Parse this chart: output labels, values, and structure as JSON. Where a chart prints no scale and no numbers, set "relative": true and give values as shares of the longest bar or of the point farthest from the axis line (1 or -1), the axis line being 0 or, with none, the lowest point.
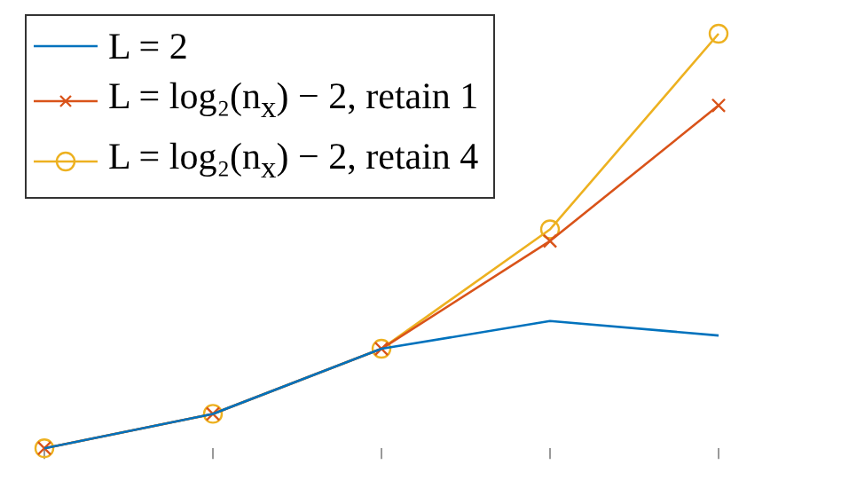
{
  "chart_data": {
    "type": "line",
    "relative": true,
    "categories": [
      null,
      null,
      null,
      null,
      null
    ],
    "grid": false,
    "legend": "top left",
    "line_style": "solid",
    "series": [
      {
        "name": "L = 2",
        "color": "#0072bd",
        "marker": "none",
        "values": [
          0,
          0.083,
          0.24,
          0.307,
          0.272
        ]
      },
      {
        "name": "L = log₂(n$_{x}$) − 2, retain 1",
        "color": "#d95319",
        "marker": "cross",
        "values": [
          0,
          0.083,
          0.24,
          0.5,
          0.827
        ]
      },
      {
        "name": "L = log₂(n$_{x}$) − 2, retain 4",
        "color": "#edb120",
        "marker": "circle",
        "values": [
          0,
          0.083,
          0.24,
          0.528,
          1
        ]
      }
    ]
  }
}
